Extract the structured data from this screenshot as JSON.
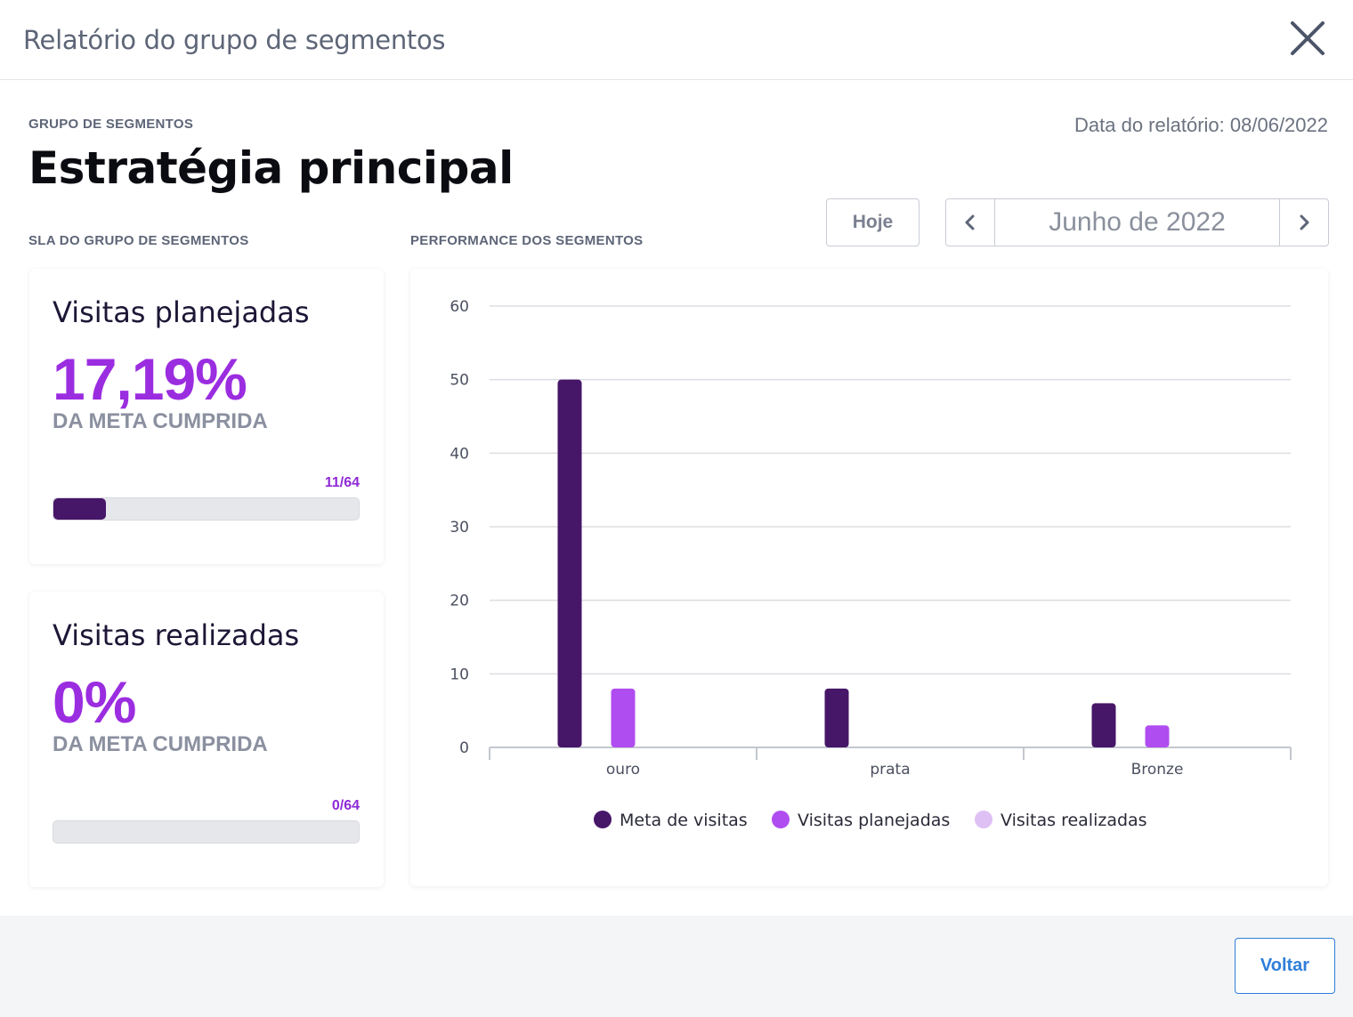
{
  "modal": {
    "title": "Relatório do grupo de segmentos"
  },
  "group": {
    "eyebrow": "GRUPO DE SEGMENTOS",
    "name": "Estratégia principal",
    "report_date": "Data do relatório: 08/06/2022"
  },
  "sla": {
    "heading": "SLA DO GRUPO DE SEGMENTOS",
    "cards": [
      {
        "title": "Visitas planejadas",
        "value": "17,19%",
        "caption": "DA META CUMPRIDA",
        "fraction": "11/64",
        "progress": 0.1719
      },
      {
        "title": "Visitas realizadas",
        "value": "0%",
        "caption": "DA META CUMPRIDA",
        "fraction": "0/64",
        "progress": 0
      }
    ]
  },
  "performance": {
    "heading": "PERFORMANCE DOS SEGMENTOS"
  },
  "period": {
    "today_label": "Hoje",
    "month_label": "Junho de 2022"
  },
  "footer": {
    "back_label": "Voltar"
  },
  "colors": {
    "accent": "#9b2de0",
    "meta": "#461668",
    "planejadas": "#b04df0",
    "realizadas": "#dfc0f5",
    "link": "#2f7fd9"
  },
  "icons": {
    "close": "close-icon",
    "prev": "chevron-left-icon",
    "next": "chevron-right-icon"
  },
  "chart_data": {
    "type": "bar",
    "categories": [
      "ouro",
      "prata",
      "Bronze"
    ],
    "series": [
      {
        "name": "Meta de visitas",
        "values": [
          50,
          8,
          6
        ],
        "color": "#461668"
      },
      {
        "name": "Visitas planejadas",
        "values": [
          8,
          0,
          3
        ],
        "color": "#b04df0"
      },
      {
        "name": "Visitas realizadas",
        "values": [
          0,
          0,
          0
        ],
        "color": "#dfc0f5"
      }
    ],
    "ylim": [
      0,
      60
    ],
    "yticks": [
      0,
      10,
      20,
      30,
      40,
      50,
      60
    ],
    "grid": true,
    "legend": "bottom"
  }
}
